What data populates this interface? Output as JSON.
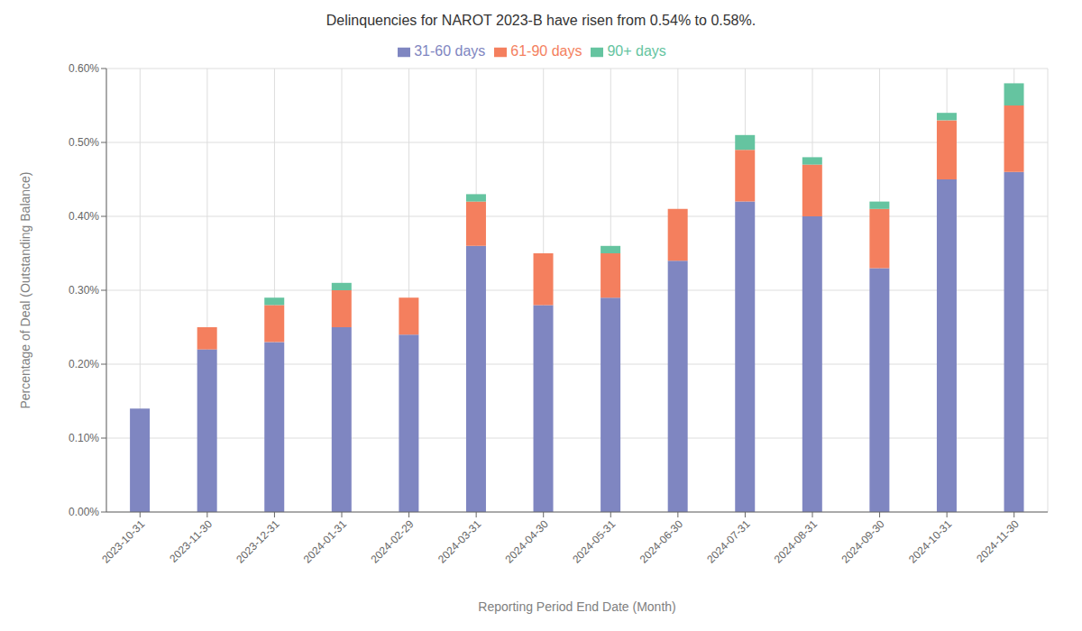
{
  "chart_data": {
    "type": "bar",
    "stacked": true,
    "title": "Delinquencies for NAROT 2023-B have risen from 0.54% to 0.58%.",
    "xlabel": "Reporting Period End Date (Month)",
    "ylabel": "Percentage of Deal (Outstanding Balance)",
    "categories": [
      "2023-10-31",
      "2023-11-30",
      "2023-12-31",
      "2024-01-31",
      "2024-02-29",
      "2024-03-31",
      "2024-04-30",
      "2024-05-31",
      "2024-06-30",
      "2024-07-31",
      "2024-08-31",
      "2024-09-30",
      "2024-10-31",
      "2024-11-30"
    ],
    "series": [
      {
        "name": "31-60 days",
        "color": "#7f86c1",
        "values": [
          0.0014,
          0.0022,
          0.0023,
          0.0025,
          0.0024,
          0.0036,
          0.0028,
          0.0029,
          0.0034,
          0.0042,
          0.004,
          0.0033,
          0.0045,
          0.0046
        ]
      },
      {
        "name": "61-90 days",
        "color": "#f47f5e",
        "values": [
          0.0,
          0.0003,
          0.0005,
          0.0005,
          0.0005,
          0.0006,
          0.0007,
          0.0006,
          0.0007,
          0.0007,
          0.0007,
          0.0008,
          0.0008,
          0.0009
        ]
      },
      {
        "name": "90+ days",
        "color": "#65c4a0",
        "values": [
          0.0,
          0.0,
          0.0001,
          0.0001,
          0.0,
          0.0001,
          0.0,
          0.0001,
          0.0,
          0.0002,
          0.0001,
          0.0001,
          0.0001,
          0.0003
        ]
      }
    ],
    "ylim": [
      0,
      0.006
    ],
    "yticks": [
      {
        "value": 0.0,
        "label": "0.00%"
      },
      {
        "value": 0.001,
        "label": "0.10%"
      },
      {
        "value": 0.002,
        "label": "0.20%"
      },
      {
        "value": 0.003,
        "label": "0.30%"
      },
      {
        "value": 0.004,
        "label": "0.40%"
      },
      {
        "value": 0.005,
        "label": "0.50%"
      },
      {
        "value": 0.006,
        "label": "0.60%"
      }
    ],
    "grid": true,
    "legend": "top"
  }
}
